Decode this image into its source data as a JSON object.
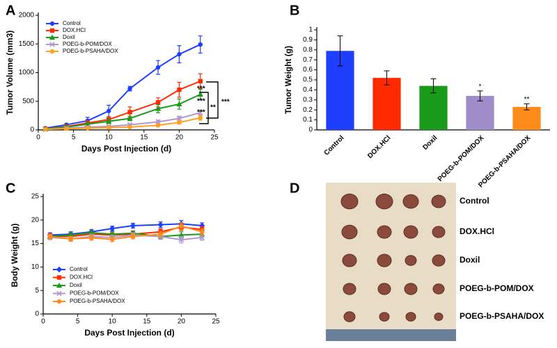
{
  "chart_data": [
    {
      "type": "line",
      "panel_label": "A",
      "xlabel": "Days Post Injection (d)",
      "ylabel": "Tumor Volume (mm3)",
      "x": [
        1,
        4,
        7,
        10,
        13,
        17,
        20,
        23
      ],
      "xlim": [
        0,
        25
      ],
      "xticks": [
        0,
        5,
        10,
        15,
        20,
        25
      ],
      "ylim": [
        0,
        2000
      ],
      "yticks": [
        0,
        500,
        1000,
        1500,
        2000
      ],
      "legend": "upper left",
      "series": [
        {
          "name": "Control",
          "color": "#1f3fff",
          "marker": "circle",
          "values": [
            30,
            90,
            160,
            330,
            720,
            1090,
            1320,
            1490
          ],
          "errors": [
            10,
            20,
            60,
            100,
            40,
            120,
            150,
            150
          ]
        },
        {
          "name": "DOX.HCl",
          "color": "#ff2a00",
          "marker": "square",
          "values": [
            20,
            60,
            120,
            180,
            310,
            480,
            700,
            850
          ],
          "errors": [
            10,
            20,
            40,
            50,
            90,
            80,
            130,
            130
          ]
        },
        {
          "name": "Doxil",
          "color": "#1a9a1a",
          "marker": "triangle",
          "values": [
            20,
            50,
            100,
            150,
            200,
            370,
            450,
            620
          ],
          "errors": [
            10,
            20,
            30,
            40,
            40,
            70,
            90,
            90
          ]
        },
        {
          "name": "POEG-b-POM/DOX",
          "color": "#b097d0",
          "marker": "x",
          "values": [
            10,
            30,
            50,
            60,
            90,
            140,
            200,
            300
          ],
          "errors": [
            5,
            10,
            15,
            20,
            20,
            30,
            40,
            40
          ]
        },
        {
          "name": "POEG-b-PSAHA/DOX",
          "color": "#ffa020",
          "marker": "circle",
          "values": [
            10,
            20,
            30,
            40,
            50,
            80,
            130,
            210
          ],
          "errors": [
            5,
            10,
            10,
            15,
            15,
            20,
            30,
            40
          ]
        }
      ],
      "annotations": [
        "***",
        "***",
        "***",
        "**",
        "***"
      ]
    },
    {
      "type": "bar",
      "panel_label": "B",
      "ylabel": "Tumor Weight (g)",
      "categories": [
        "Control",
        "DOX.HCl",
        "Doxil",
        "POEG-b-POM/DOX",
        "POEG-b-PSAHA/DOX"
      ],
      "values": [
        0.79,
        0.52,
        0.44,
        0.34,
        0.23
      ],
      "errors": [
        0.15,
        0.07,
        0.07,
        0.05,
        0.03
      ],
      "colors": [
        "#1f3fff",
        "#ff2a00",
        "#1a9a1a",
        "#a08cc8",
        "#ff8c1a"
      ],
      "ylim": [
        0,
        1
      ],
      "yticks": [
        0,
        0.1,
        0.2,
        0.3,
        0.4,
        0.5,
        0.6,
        0.7,
        0.8,
        0.9,
        1
      ],
      "annotations": [
        {
          "category": "POEG-b-POM/DOX",
          "text": "*"
        },
        {
          "category": "POEG-b-PSAHA/DOX",
          "text": "**"
        }
      ]
    },
    {
      "type": "line",
      "panel_label": "C",
      "xlabel": "Days Post Injection (d)",
      "ylabel": "Body Weight (g)",
      "x": [
        1,
        4,
        7,
        10,
        13,
        17,
        20,
        23
      ],
      "xlim": [
        0,
        25
      ],
      "xticks": [
        0,
        5,
        10,
        15,
        20,
        25
      ],
      "ylim": [
        0,
        25
      ],
      "yticks": [
        0,
        5,
        10,
        15,
        20,
        25
      ],
      "legend": "lower left",
      "series": [
        {
          "name": "Control",
          "color": "#1f3fff",
          "marker": "diamond",
          "values": [
            16.8,
            17.0,
            17.5,
            18.2,
            18.8,
            19.0,
            19.2,
            18.8
          ],
          "errors": [
            0.5,
            0.5,
            0.5,
            0.5,
            0.5,
            0.6,
            0.7,
            0.6
          ]
        },
        {
          "name": "DOX.HCl",
          "color": "#ff2a00",
          "marker": "square",
          "values": [
            16.6,
            16.5,
            17.0,
            16.8,
            17.0,
            17.5,
            18.5,
            18.0
          ],
          "errors": [
            0.5,
            0.5,
            0.5,
            0.5,
            0.5,
            0.6,
            0.7,
            0.6
          ]
        },
        {
          "name": "Doxil",
          "color": "#1a9a1a",
          "marker": "triangle",
          "values": [
            16.5,
            16.8,
            17.3,
            17.0,
            17.2,
            16.5,
            16.8,
            17.0
          ],
          "errors": [
            0.5,
            0.5,
            0.5,
            0.5,
            0.5,
            0.6,
            0.7,
            0.6
          ]
        },
        {
          "name": "POEG-b-POM/DOX",
          "color": "#b097d0",
          "marker": "x",
          "values": [
            16.3,
            16.0,
            16.5,
            16.3,
            16.8,
            16.5,
            15.8,
            16.3
          ],
          "errors": [
            0.5,
            0.5,
            0.5,
            0.5,
            0.5,
            0.6,
            0.7,
            0.6
          ]
        },
        {
          "name": "POEG-b-PSAHA/DOX",
          "color": "#ff8c1a",
          "marker": "circle",
          "values": [
            16.5,
            16.0,
            16.2,
            15.9,
            16.5,
            17.0,
            18.7,
            17.5
          ],
          "errors": [
            0.5,
            0.5,
            0.5,
            0.5,
            0.5,
            0.6,
            0.7,
            0.6
          ]
        }
      ]
    }
  ],
  "photo_panel": {
    "panel_label": "D",
    "labels": [
      "Control",
      "DOX.HCl",
      "Doxil",
      "POEG-b-POM/DOX",
      "POEG-b-PSAHA/DOX"
    ]
  }
}
